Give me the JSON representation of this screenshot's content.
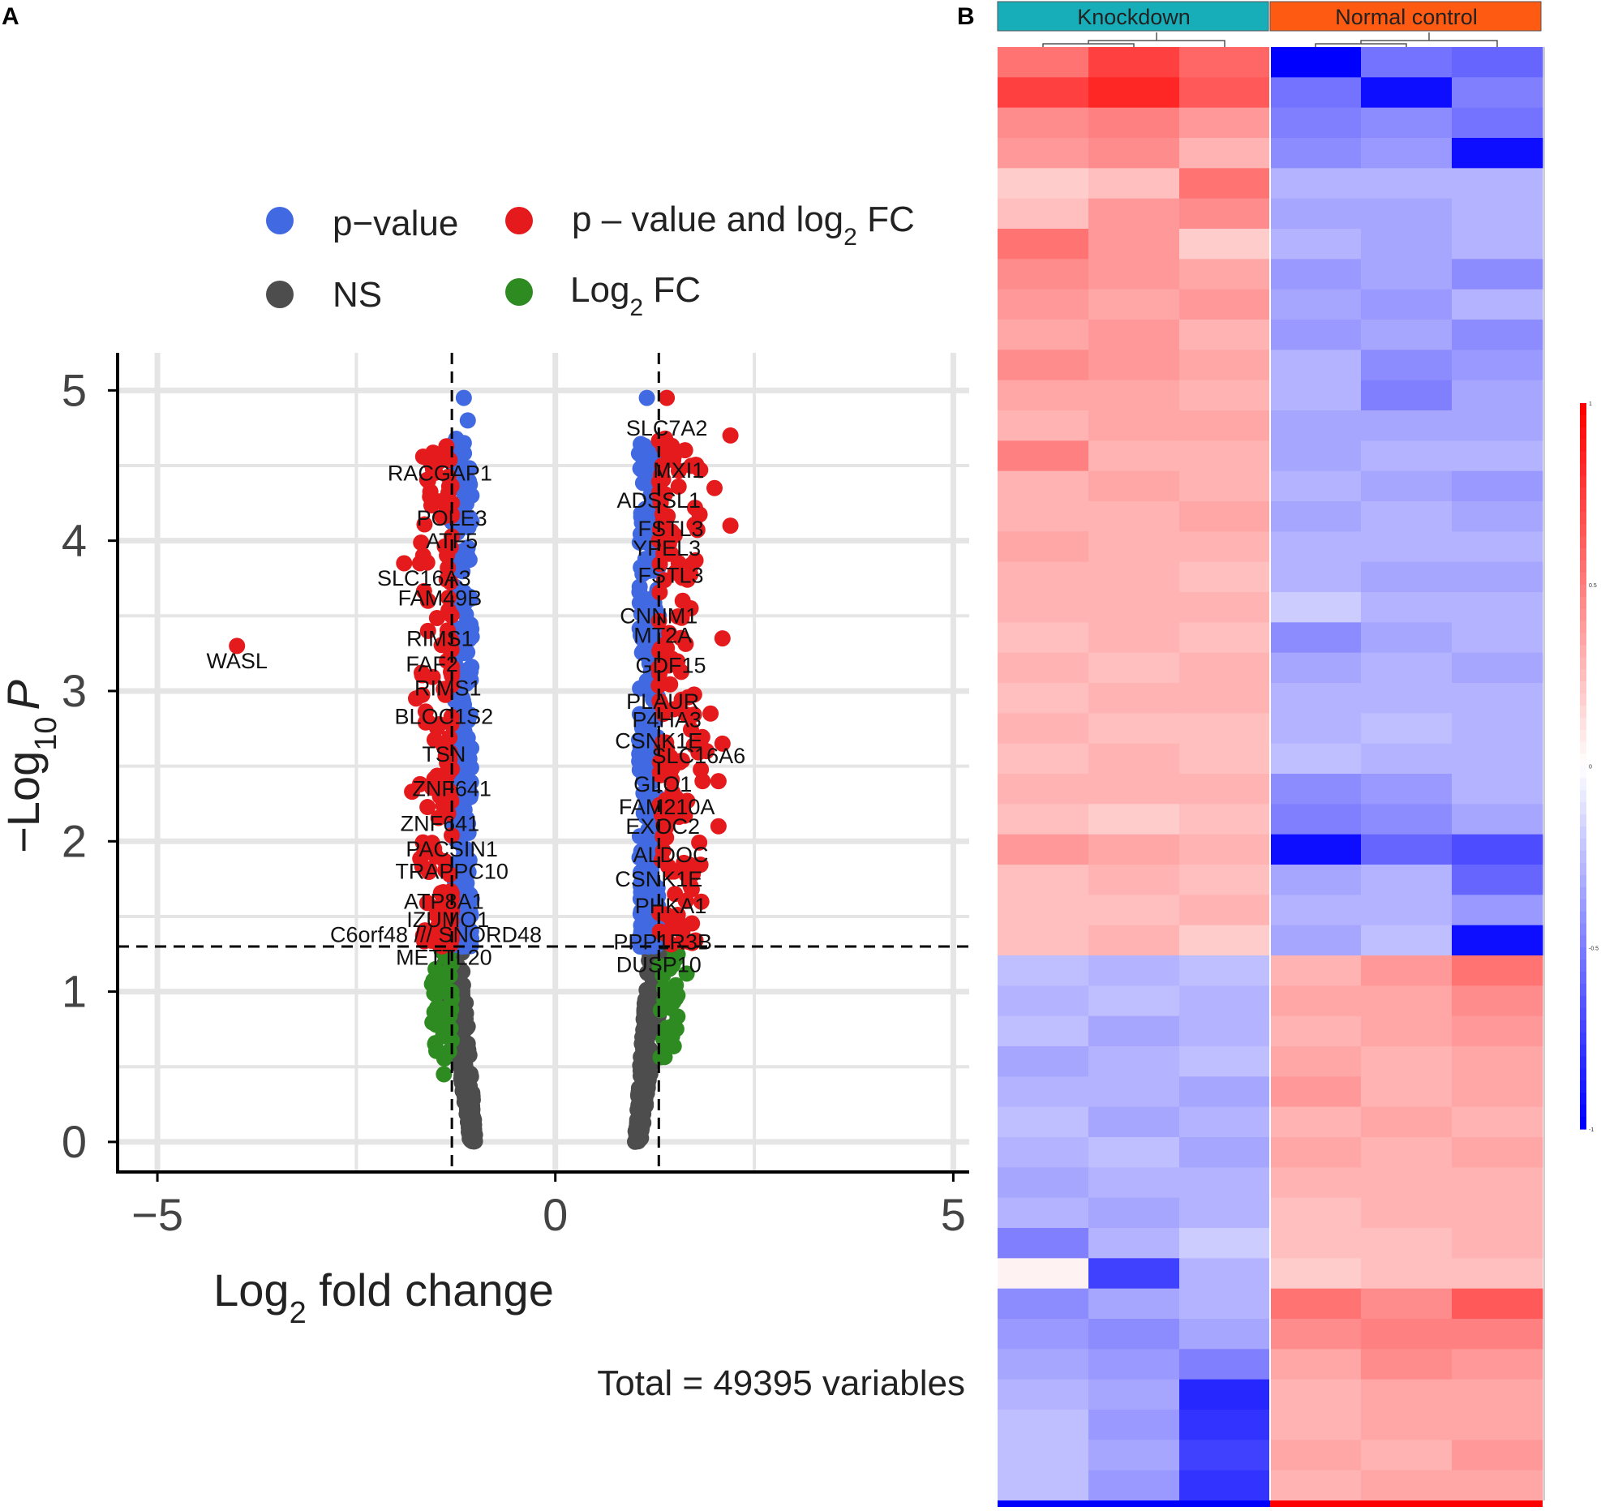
{
  "panels": {
    "a": "A",
    "b": "B"
  },
  "colors": {
    "pvalue": "#4169E1",
    "pvalue_and_fc": "#E41A1C",
    "ns": "#4D4D4D",
    "fc": "#2E8B22",
    "grid": "#E5E5E5",
    "knockdown": "#17AEBA",
    "normal_control": "#FF5A12",
    "heat_high": "#FF0000",
    "heat_mid": "#FFFFFF",
    "heat_low": "#0000FF"
  },
  "chart_data": [
    {
      "type": "scatter",
      "subtype": "volcano",
      "xlabel_main": "Log",
      "xlabel_sub": "2",
      "xlabel_rest": " fold change",
      "ylabel_prefix": "−",
      "ylabel_main": "Log",
      "ylabel_sub": "10",
      "ylabel_var": "P",
      "xlim": [
        -5.5,
        5.2
      ],
      "ylim": [
        -0.2,
        5.25
      ],
      "x_ticks": [
        -5,
        0,
        5
      ],
      "x_tick_labels": [
        "−5",
        "0",
        "5"
      ],
      "y_ticks": [
        0,
        1,
        2,
        3,
        4,
        5
      ],
      "y_tick_labels": [
        "0",
        "1",
        "2",
        "3",
        "4",
        "5"
      ],
      "fc_cutoff": 1.3,
      "p_cutoff": 1.3,
      "legend": [
        {
          "key": "pvalue",
          "label": "p−value"
        },
        {
          "key": "pvalue_and_fc",
          "label_main": "p – value and log",
          "label_sub": "2",
          "label_rest": " FC"
        },
        {
          "key": "ns",
          "label": "NS"
        },
        {
          "key": "fc",
          "label_main": "Log",
          "label_sub": "2",
          "label_rest": " FC"
        }
      ],
      "caption": "Total = 49395 variables",
      "points_highlight": [
        {
          "x": -4.0,
          "y": 3.3,
          "g": "pvalue_and_fc"
        },
        {
          "x": -1.15,
          "y": 4.95,
          "g": "pvalue"
        },
        {
          "x": -1.1,
          "y": 4.8,
          "g": "pvalue"
        },
        {
          "x": -1.15,
          "y": 4.65,
          "g": "pvalue"
        },
        {
          "x": -1.45,
          "y": 4.55,
          "g": "pvalue_and_fc"
        },
        {
          "x": -1.35,
          "y": 4.55,
          "g": "pvalue_and_fc"
        },
        {
          "x": -1.3,
          "y": 4.25,
          "g": "pvalue_and_fc"
        },
        {
          "x": -1.9,
          "y": 3.85,
          "g": "pvalue_and_fc"
        },
        {
          "x": -1.7,
          "y": 3.85,
          "g": "pvalue_and_fc"
        },
        {
          "x": -1.6,
          "y": 3.6,
          "g": "pvalue_and_fc"
        },
        {
          "x": -1.6,
          "y": 3.4,
          "g": "pvalue_and_fc"
        },
        {
          "x": -1.75,
          "y": 2.95,
          "g": "pvalue_and_fc"
        },
        {
          "x": -1.8,
          "y": 2.33,
          "g": "pvalue_and_fc"
        },
        {
          "x": -1.7,
          "y": 2.38,
          "g": "pvalue_and_fc"
        },
        {
          "x": -1.5,
          "y": 1.9,
          "g": "pvalue_and_fc"
        },
        {
          "x": 1.15,
          "y": 4.95,
          "g": "pvalue"
        },
        {
          "x": 1.4,
          "y": 4.95,
          "g": "pvalue_and_fc"
        },
        {
          "x": 1.1,
          "y": 4.55,
          "g": "pvalue"
        },
        {
          "x": 2.2,
          "y": 4.7,
          "g": "pvalue_and_fc"
        },
        {
          "x": 1.45,
          "y": 4.6,
          "g": "pvalue_and_fc"
        },
        {
          "x": 2.0,
          "y": 4.35,
          "g": "pvalue_and_fc"
        },
        {
          "x": 2.2,
          "y": 4.1,
          "g": "pvalue_and_fc"
        },
        {
          "x": 1.6,
          "y": 3.6,
          "g": "pvalue_and_fc"
        },
        {
          "x": 1.7,
          "y": 3.55,
          "g": "pvalue_and_fc"
        },
        {
          "x": 2.1,
          "y": 3.35,
          "g": "pvalue_and_fc"
        },
        {
          "x": 1.95,
          "y": 2.85,
          "g": "pvalue_and_fc"
        },
        {
          "x": 2.1,
          "y": 2.65,
          "g": "pvalue_and_fc"
        },
        {
          "x": 1.9,
          "y": 2.6,
          "g": "pvalue_and_fc"
        },
        {
          "x": 2.05,
          "y": 2.4,
          "g": "pvalue_and_fc"
        },
        {
          "x": 1.85,
          "y": 2.4,
          "g": "pvalue_and_fc"
        },
        {
          "x": 2.05,
          "y": 2.1,
          "g": "pvalue_and_fc"
        },
        {
          "x": 1.65,
          "y": 1.12,
          "g": "fc"
        },
        {
          "x": -1.55,
          "y": 1.05,
          "g": "fc"
        },
        {
          "x": -1.4,
          "y": 0.45,
          "g": "fc"
        }
      ],
      "gene_labels": [
        {
          "text": "WASL",
          "x": -4.0,
          "y": 3.15
        },
        {
          "text": "RACGAP1",
          "x": -1.45,
          "y": 4.4
        },
        {
          "text": "POLE3",
          "x": -1.3,
          "y": 4.1
        },
        {
          "text": "ATF5",
          "x": -1.3,
          "y": 3.95
        },
        {
          "text": "SLC16A3",
          "x": -1.65,
          "y": 3.7
        },
        {
          "text": "FAM49B",
          "x": -1.45,
          "y": 3.57
        },
        {
          "text": "RIMS1",
          "x": -1.45,
          "y": 3.3
        },
        {
          "text": "FAF2",
          "x": -1.55,
          "y": 3.13
        },
        {
          "text": "RIMS1",
          "x": -1.35,
          "y": 2.97
        },
        {
          "text": "BLOC1S2",
          "x": -1.4,
          "y": 2.78
        },
        {
          "text": "TSN",
          "x": -1.4,
          "y": 2.53
        },
        {
          "text": "ZNF641",
          "x": -1.3,
          "y": 2.3
        },
        {
          "text": "ZNF641",
          "x": -1.45,
          "y": 2.07
        },
        {
          "text": "PACSIN1",
          "x": -1.3,
          "y": 1.9
        },
        {
          "text": "TRAPPC10",
          "x": -1.3,
          "y": 1.75
        },
        {
          "text": "ATP8A1",
          "x": -1.4,
          "y": 1.55
        },
        {
          "text": "IZUMO1",
          "x": -1.35,
          "y": 1.43
        },
        {
          "text": "C6orf48 /// SNORD48",
          "x": -1.5,
          "y": 1.33
        },
        {
          "text": "METTL20",
          "x": -1.4,
          "y": 1.18
        },
        {
          "text": "SLC7A2",
          "x": 1.4,
          "y": 4.7
        },
        {
          "text": "MXI1",
          "x": 1.55,
          "y": 4.42
        },
        {
          "text": "ADSSL1",
          "x": 1.3,
          "y": 4.22
        },
        {
          "text": "FSTL3",
          "x": 1.45,
          "y": 4.03
        },
        {
          "text": "YPEL3",
          "x": 1.4,
          "y": 3.9
        },
        {
          "text": "FSTL3",
          "x": 1.45,
          "y": 3.72
        },
        {
          "text": "CNNM1",
          "x": 1.3,
          "y": 3.45
        },
        {
          "text": "MT2A",
          "x": 1.35,
          "y": 3.32
        },
        {
          "text": "GDF15",
          "x": 1.45,
          "y": 3.12
        },
        {
          "text": "PLAUR",
          "x": 1.35,
          "y": 2.88
        },
        {
          "text": "P4HA3",
          "x": 1.4,
          "y": 2.76
        },
        {
          "text": "CSNK1E",
          "x": 1.3,
          "y": 2.62
        },
        {
          "text": "SLC16A6",
          "x": 1.8,
          "y": 2.52
        },
        {
          "text": "GLO1",
          "x": 1.35,
          "y": 2.33
        },
        {
          "text": "FAM210A",
          "x": 1.4,
          "y": 2.18
        },
        {
          "text": "EXOC2",
          "x": 1.35,
          "y": 2.05
        },
        {
          "text": "ALDOC",
          "x": 1.45,
          "y": 1.86
        },
        {
          "text": "CSNK1E",
          "x": 1.3,
          "y": 1.7
        },
        {
          "text": "PHKA1",
          "x": 1.45,
          "y": 1.52
        },
        {
          "text": "PPP1R3B",
          "x": 1.35,
          "y": 1.28
        },
        {
          "text": "DUSP10",
          "x": 1.3,
          "y": 1.13
        }
      ]
    },
    {
      "type": "heatmap",
      "groups": [
        {
          "label": "Knockdown",
          "n": 3,
          "color_key": "knockdown"
        },
        {
          "label": "Normal control",
          "n": 3,
          "color_key": "normal_control"
        }
      ],
      "value_range": [
        -1,
        1
      ],
      "colorbar_ticks": [
        1,
        0.5,
        0,
        -0.5,
        -1
      ],
      "colorbar_tick_labels": [
        "1",
        "0.5",
        "0",
        "-0.5",
        "-1"
      ],
      "row_blocks": [
        [
          0.55,
          0.75,
          0.6,
          -1.0,
          -0.55,
          -0.6
        ],
        [
          0.75,
          0.85,
          0.65,
          -0.55,
          -0.95,
          -0.5
        ],
        [
          0.45,
          0.5,
          0.4,
          -0.5,
          -0.45,
          -0.55
        ],
        [
          0.4,
          0.45,
          0.3,
          -0.45,
          -0.4,
          -0.95
        ],
        [
          0.2,
          0.25,
          0.55,
          -0.3,
          -0.3,
          -0.3
        ],
        [
          0.25,
          0.4,
          0.45,
          -0.35,
          -0.35,
          -0.3
        ],
        [
          0.55,
          0.4,
          0.2,
          -0.3,
          -0.35,
          -0.3
        ],
        [
          0.45,
          0.4,
          0.35,
          -0.4,
          -0.35,
          -0.45
        ],
        [
          0.4,
          0.35,
          0.4,
          -0.35,
          -0.4,
          -0.3
        ],
        [
          0.35,
          0.4,
          0.3,
          -0.4,
          -0.35,
          -0.45
        ],
        [
          0.45,
          0.4,
          0.35,
          -0.3,
          -0.45,
          -0.4
        ],
        [
          0.35,
          0.35,
          0.3,
          -0.3,
          -0.5,
          -0.35
        ],
        [
          0.3,
          0.35,
          0.35,
          -0.35,
          -0.35,
          -0.35
        ],
        [
          0.5,
          0.3,
          0.3,
          -0.35,
          -0.3,
          -0.3
        ],
        [
          0.3,
          0.35,
          0.3,
          -0.3,
          -0.35,
          -0.4
        ],
        [
          0.3,
          0.3,
          0.35,
          -0.35,
          -0.3,
          -0.35
        ],
        [
          0.35,
          0.3,
          0.3,
          -0.3,
          -0.3,
          -0.3
        ],
        [
          0.3,
          0.3,
          0.25,
          -0.3,
          -0.35,
          -0.35
        ],
        [
          0.3,
          0.3,
          0.3,
          -0.2,
          -0.3,
          -0.3
        ],
        [
          0.25,
          0.3,
          0.25,
          -0.45,
          -0.35,
          -0.3
        ],
        [
          0.3,
          0.25,
          0.3,
          -0.35,
          -0.3,
          -0.35
        ],
        [
          0.25,
          0.3,
          0.3,
          -0.3,
          -0.3,
          -0.3
        ],
        [
          0.3,
          0.25,
          0.25,
          -0.3,
          -0.25,
          -0.3
        ],
        [
          0.25,
          0.3,
          0.25,
          -0.25,
          -0.3,
          -0.3
        ],
        [
          0.3,
          0.3,
          0.3,
          -0.45,
          -0.4,
          -0.3
        ],
        [
          0.25,
          0.2,
          0.25,
          -0.5,
          -0.45,
          -0.35
        ],
        [
          0.4,
          0.35,
          0.3,
          -0.95,
          -0.6,
          -0.7
        ],
        [
          0.25,
          0.3,
          0.25,
          -0.35,
          -0.3,
          -0.6
        ],
        [
          0.25,
          0.25,
          0.3,
          -0.3,
          -0.3,
          -0.4
        ],
        [
          0.25,
          0.3,
          0.2,
          -0.35,
          -0.25,
          -0.95
        ],
        [
          -0.25,
          -0.3,
          -0.25,
          0.3,
          0.4,
          0.55
        ],
        [
          -0.3,
          -0.25,
          -0.3,
          0.35,
          0.35,
          0.45
        ],
        [
          -0.25,
          -0.35,
          -0.3,
          0.3,
          0.35,
          0.4
        ],
        [
          -0.35,
          -0.3,
          -0.25,
          0.35,
          0.3,
          0.35
        ],
        [
          -0.3,
          -0.3,
          -0.35,
          0.4,
          0.3,
          0.35
        ],
        [
          -0.25,
          -0.35,
          -0.3,
          0.3,
          0.35,
          0.3
        ],
        [
          -0.3,
          -0.25,
          -0.35,
          0.35,
          0.3,
          0.35
        ],
        [
          -0.35,
          -0.3,
          -0.3,
          0.3,
          0.3,
          0.3
        ],
        [
          -0.3,
          -0.35,
          -0.3,
          0.25,
          0.3,
          0.3
        ],
        [
          -0.5,
          -0.3,
          -0.2,
          0.25,
          0.25,
          0.3
        ],
        [
          0.05,
          -0.75,
          -0.3,
          0.2,
          0.25,
          0.25
        ],
        [
          -0.45,
          -0.35,
          -0.3,
          0.55,
          0.45,
          0.65
        ],
        [
          -0.4,
          -0.45,
          -0.35,
          0.45,
          0.5,
          0.5
        ],
        [
          -0.35,
          -0.4,
          -0.5,
          0.35,
          0.45,
          0.4
        ],
        [
          -0.3,
          -0.35,
          -0.85,
          0.3,
          0.35,
          0.35
        ],
        [
          -0.25,
          -0.4,
          -0.8,
          0.3,
          0.35,
          0.35
        ],
        [
          -0.25,
          -0.35,
          -0.75,
          0.35,
          0.3,
          0.4
        ],
        [
          -0.25,
          -0.4,
          -0.8,
          0.3,
          0.35,
          0.35
        ]
      ]
    }
  ]
}
